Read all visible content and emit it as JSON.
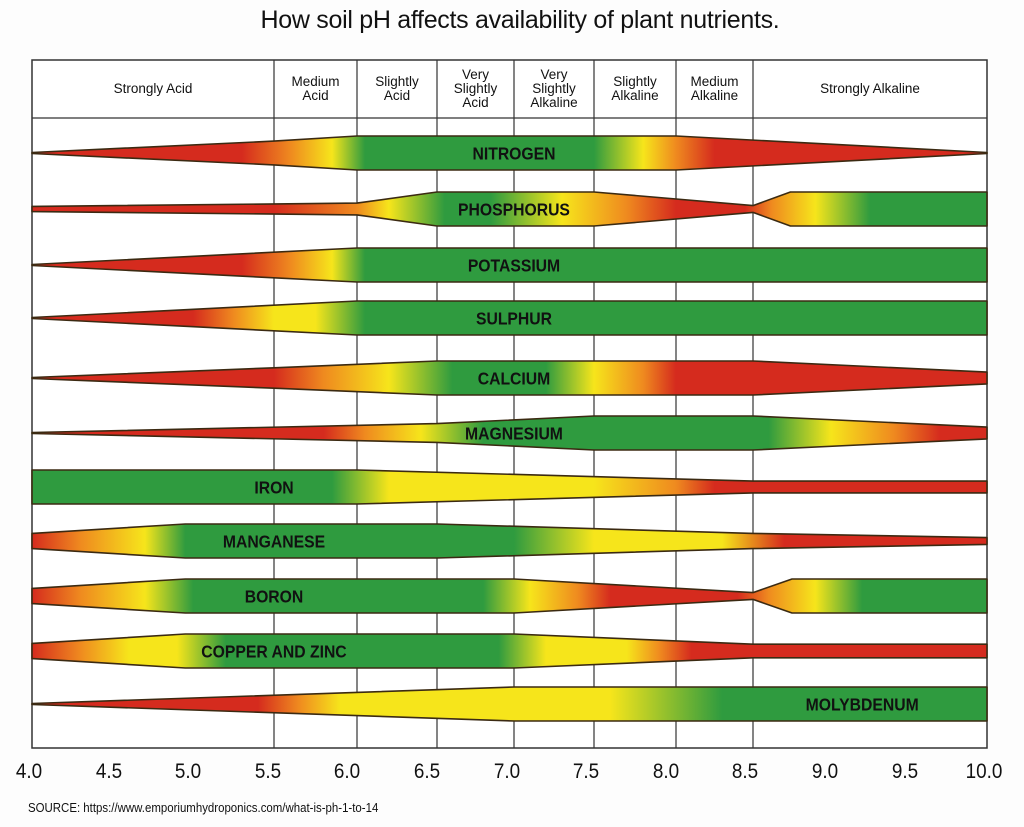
{
  "title": "How soil pH affects availability of plant nutrients.",
  "source": "SOURCE: https://www.emporiumhydroponics.com/what-is-ph-1-to-14",
  "colors": {
    "red": "#d52b1e",
    "orange": "#ef8a1f",
    "yellow": "#f6e51b",
    "green": "#2f9b3f",
    "outline": "#3b2a12"
  },
  "zones": [
    {
      "label": "Strongly Acid",
      "from": 4.0,
      "to": 5.5
    },
    {
      "label": "Medium\nAcid",
      "from": 5.5,
      "to": 6.0
    },
    {
      "label": "Slightly\nAcid",
      "from": 6.0,
      "to": 6.5
    },
    {
      "label": "Very\nSlightly\nAcid",
      "from": 6.5,
      "to": 7.0
    },
    {
      "label": "Very\nSlightly\nAlkaline",
      "from": 7.0,
      "to": 7.5
    },
    {
      "label": "Slightly\nAlkaline",
      "from": 7.5,
      "to": 8.0
    },
    {
      "label": "Medium\nAlkaline",
      "from": 8.0,
      "to": 8.5
    },
    {
      "label": "Strongly Alkaline",
      "from": 8.5,
      "to": 10.0
    }
  ],
  "chart_data": {
    "type": "band",
    "title": "How soil pH affects availability of plant nutrients.",
    "x_ticks": [
      "4.0",
      "4.5",
      "5.0",
      "5.5",
      "6.0",
      "6.5",
      "7.0",
      "7.5",
      "8.0",
      "8.5",
      "9.0",
      "9.5",
      "10.0"
    ],
    "xlim": [
      4.0,
      10.0
    ],
    "grid": "vertical",
    "nutrients": [
      {
        "name": "NITROGEN",
        "label_ph": 7.0,
        "availability": [
          [
            4,
            0.03
          ],
          [
            5.5,
            0.7
          ],
          [
            6,
            1
          ],
          [
            8,
            1
          ],
          [
            10,
            0.03
          ]
        ],
        "colors": [
          [
            4,
            "red"
          ],
          [
            5.3,
            "red"
          ],
          [
            5.6,
            "orange"
          ],
          [
            5.85,
            "yellow"
          ],
          [
            6.05,
            "green"
          ],
          [
            7.5,
            "green"
          ],
          [
            7.8,
            "yellow"
          ],
          [
            8.0,
            "orange"
          ],
          [
            8.25,
            "red"
          ],
          [
            10,
            "red"
          ]
        ]
      },
      {
        "name": "PHOSPHORUS",
        "label_ph": 7.0,
        "availability": [
          [
            4,
            0.15
          ],
          [
            6,
            0.35
          ],
          [
            6.5,
            1
          ],
          [
            7.5,
            1
          ],
          [
            8.5,
            0.2
          ],
          [
            8.74,
            1
          ],
          [
            10,
            1
          ]
        ],
        "colors": [
          [
            4,
            "red"
          ],
          [
            5.5,
            "red"
          ],
          [
            6.0,
            "orange"
          ],
          [
            6.2,
            "yellow"
          ],
          [
            6.55,
            "green"
          ],
          [
            6.85,
            "green"
          ],
          [
            7.3,
            "yellow"
          ],
          [
            7.7,
            "orange"
          ],
          [
            8.0,
            "red"
          ],
          [
            8.45,
            "red"
          ],
          [
            8.62,
            "orange"
          ],
          [
            8.9,
            "yellow"
          ],
          [
            9.25,
            "green"
          ],
          [
            10,
            "green"
          ]
        ]
      },
      {
        "name": "POTASSIUM",
        "label_ph": 7.0,
        "availability": [
          [
            4,
            0.03
          ],
          [
            6,
            1
          ],
          [
            10,
            1
          ]
        ],
        "colors": [
          [
            4,
            "red"
          ],
          [
            5.3,
            "red"
          ],
          [
            5.6,
            "orange"
          ],
          [
            5.85,
            "yellow"
          ],
          [
            6.05,
            "green"
          ],
          [
            10,
            "green"
          ]
        ]
      },
      {
        "name": "SULPHUR",
        "label_ph": 7.0,
        "availability": [
          [
            4,
            0.03
          ],
          [
            6,
            1
          ],
          [
            10,
            1
          ]
        ],
        "colors": [
          [
            4,
            "red"
          ],
          [
            5.0,
            "red"
          ],
          [
            5.25,
            "orange"
          ],
          [
            5.5,
            "yellow"
          ],
          [
            5.75,
            "yellow"
          ],
          [
            6.05,
            "green"
          ],
          [
            10,
            "green"
          ]
        ]
      },
      {
        "name": "CALCIUM",
        "label_ph": 7.0,
        "availability": [
          [
            4,
            0.03
          ],
          [
            5.5,
            0.6
          ],
          [
            6.5,
            1
          ],
          [
            8.5,
            1
          ],
          [
            10,
            0.35
          ]
        ],
        "colors": [
          [
            4,
            "red"
          ],
          [
            5.5,
            "red"
          ],
          [
            5.8,
            "orange"
          ],
          [
            6.2,
            "yellow"
          ],
          [
            6.6,
            "green"
          ],
          [
            7.2,
            "green"
          ],
          [
            7.5,
            "yellow"
          ],
          [
            7.8,
            "orange"
          ],
          [
            8.0,
            "red"
          ],
          [
            10,
            "red"
          ]
        ]
      },
      {
        "name": "MAGNESIUM",
        "label_ph": 7.0,
        "availability": [
          [
            4,
            0.03
          ],
          [
            6.5,
            0.55
          ],
          [
            7.5,
            1
          ],
          [
            8.5,
            1
          ],
          [
            10,
            0.35
          ]
        ],
        "colors": [
          [
            4,
            "red"
          ],
          [
            5.8,
            "red"
          ],
          [
            6.05,
            "orange"
          ],
          [
            6.4,
            "yellow"
          ],
          [
            6.8,
            "green"
          ],
          [
            8.6,
            "green"
          ],
          [
            9.0,
            "yellow"
          ],
          [
            9.4,
            "orange"
          ],
          [
            9.7,
            "red"
          ],
          [
            10,
            "red"
          ]
        ]
      },
      {
        "name": "IRON",
        "label_ph": 5.5,
        "availability": [
          [
            4,
            1
          ],
          [
            6,
            1
          ],
          [
            8.5,
            0.35
          ],
          [
            10,
            0.35
          ]
        ],
        "colors": [
          [
            4,
            "green"
          ],
          [
            5.85,
            "green"
          ],
          [
            6.2,
            "yellow"
          ],
          [
            7.5,
            "yellow"
          ],
          [
            8.0,
            "orange"
          ],
          [
            8.25,
            "red"
          ],
          [
            10,
            "red"
          ]
        ]
      },
      {
        "name": "MANGANESE",
        "label_ph": 5.5,
        "availability": [
          [
            4,
            0.45
          ],
          [
            4.95,
            1
          ],
          [
            6.5,
            1
          ],
          [
            8.5,
            0.45
          ],
          [
            10,
            0.2
          ]
        ],
        "colors": [
          [
            4,
            "red"
          ],
          [
            4.3,
            "orange"
          ],
          [
            4.7,
            "yellow"
          ],
          [
            4.95,
            "green"
          ],
          [
            7.0,
            "green"
          ],
          [
            7.5,
            "yellow"
          ],
          [
            8.3,
            "yellow"
          ],
          [
            8.7,
            "red"
          ],
          [
            10,
            "red"
          ]
        ]
      },
      {
        "name": "BORON",
        "label_ph": 5.5,
        "availability": [
          [
            4,
            0.45
          ],
          [
            4.95,
            1
          ],
          [
            7.0,
            1
          ],
          [
            8.5,
            0.2
          ],
          [
            8.75,
            1
          ],
          [
            10,
            1
          ]
        ],
        "colors": [
          [
            4,
            "red"
          ],
          [
            4.3,
            "orange"
          ],
          [
            4.7,
            "yellow"
          ],
          [
            5.0,
            "green"
          ],
          [
            6.8,
            "green"
          ],
          [
            7.1,
            "yellow"
          ],
          [
            7.4,
            "orange"
          ],
          [
            7.6,
            "red"
          ],
          [
            8.4,
            "red"
          ],
          [
            8.6,
            "orange"
          ],
          [
            8.9,
            "yellow"
          ],
          [
            9.2,
            "green"
          ],
          [
            10,
            "green"
          ]
        ]
      },
      {
        "name": "COPPER AND ZINC",
        "label_ph": 5.5,
        "availability": [
          [
            4,
            0.45
          ],
          [
            4.95,
            1
          ],
          [
            7.0,
            1
          ],
          [
            8.5,
            0.4
          ],
          [
            10,
            0.4
          ]
        ],
        "colors": [
          [
            4,
            "red"
          ],
          [
            4.3,
            "orange"
          ],
          [
            4.6,
            "yellow"
          ],
          [
            4.9,
            "yellow"
          ],
          [
            5.2,
            "green"
          ],
          [
            6.9,
            "green"
          ],
          [
            7.2,
            "yellow"
          ],
          [
            7.7,
            "yellow"
          ],
          [
            7.9,
            "orange"
          ],
          [
            8.1,
            "red"
          ],
          [
            10,
            "red"
          ]
        ]
      },
      {
        "name": "MOLYBDENUM",
        "label_ph": 9.2,
        "availability": [
          [
            4,
            0.03
          ],
          [
            7.0,
            1
          ],
          [
            10,
            1
          ]
        ],
        "colors": [
          [
            4,
            "red"
          ],
          [
            5.4,
            "red"
          ],
          [
            5.65,
            "orange"
          ],
          [
            5.9,
            "yellow"
          ],
          [
            7.6,
            "yellow"
          ],
          [
            8.3,
            "green"
          ],
          [
            10,
            "green"
          ]
        ]
      }
    ]
  }
}
